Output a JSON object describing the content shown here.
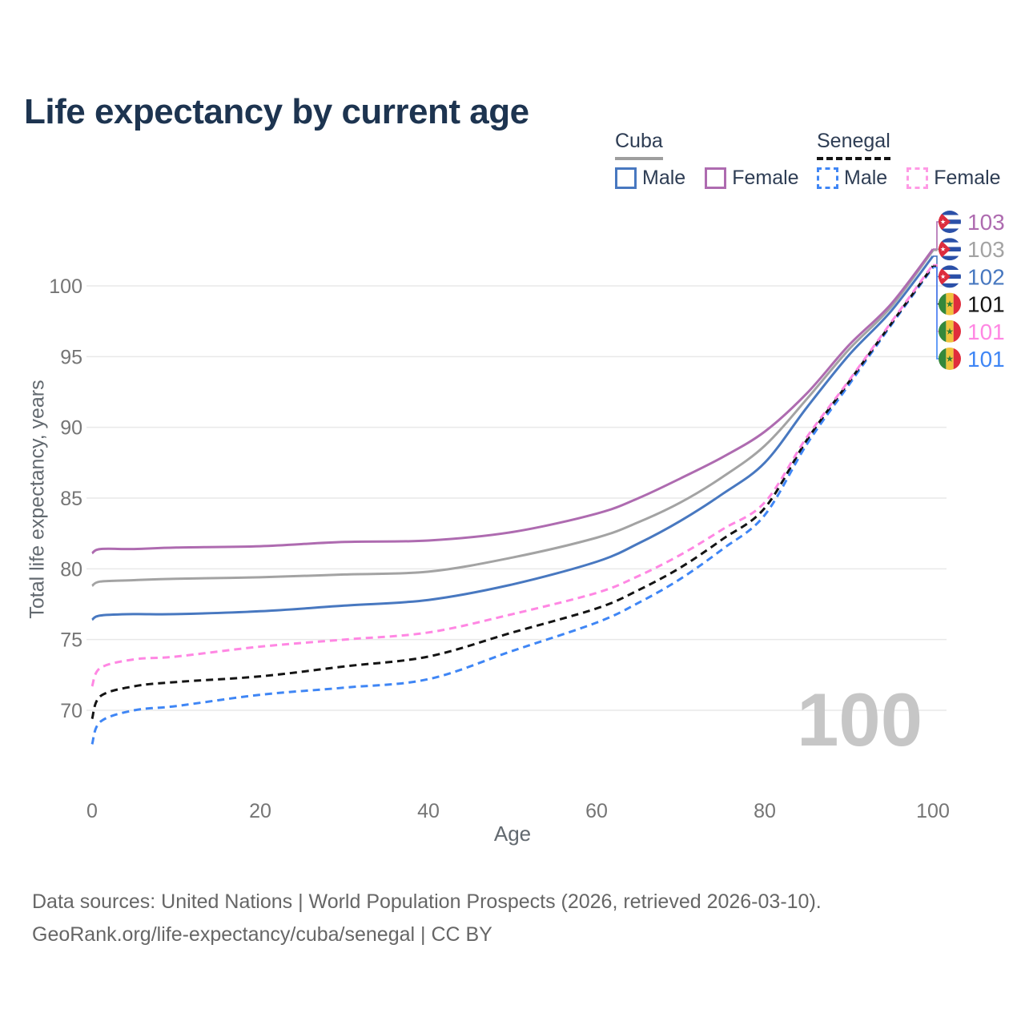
{
  "title": "Life expectancy by current age",
  "legend": {
    "groups": [
      {
        "country": "Cuba",
        "line_style": "solid",
        "line_color": "#9e9e9e",
        "items": [
          {
            "label": "Male",
            "color": "#4878c0",
            "dashed": false
          },
          {
            "label": "Female",
            "color": "#ae6bb0",
            "dashed": false
          }
        ]
      },
      {
        "country": "Senegal",
        "line_style": "dashed",
        "line_color": "#141414",
        "items": [
          {
            "label": "Male",
            "color": "#3f86f5",
            "dashed": true
          },
          {
            "label": "Female",
            "color": "#ff9ae5",
            "dashed": true
          }
        ]
      }
    ]
  },
  "chart_data": {
    "type": "line",
    "title": "Life expectancy by current age",
    "xlabel": "Age",
    "ylabel": "Total life expectancy, years",
    "x_ticks": [
      0,
      20,
      40,
      60,
      80,
      100
    ],
    "y_ticks": [
      70,
      75,
      80,
      85,
      90,
      95,
      100
    ],
    "xlim": [
      0,
      100
    ],
    "ylim": [
      66,
      104
    ],
    "grid": "horizontal-only",
    "age_frame": "100",
    "x": [
      0,
      1,
      5,
      10,
      20,
      30,
      40,
      50,
      60,
      65,
      70,
      75,
      80,
      85,
      90,
      95,
      100
    ],
    "series": [
      {
        "name": "Cuba Male",
        "country": "Cuba",
        "sex": "Male",
        "style": "solid",
        "color": "#4878c0",
        "end_label": "102",
        "values": [
          76.4,
          76.7,
          76.8,
          76.8,
          77.0,
          77.4,
          77.8,
          78.9,
          80.5,
          81.8,
          83.4,
          85.3,
          87.5,
          91.4,
          95.1,
          98.2,
          102.1
        ]
      },
      {
        "name": "Cuba Both sexes",
        "country": "Cuba",
        "sex": "Both sexes",
        "style": "solid",
        "color": "#a3a3a3",
        "end_label": "103",
        "values": [
          78.8,
          79.1,
          79.2,
          79.3,
          79.4,
          79.6,
          79.8,
          80.8,
          82.2,
          83.3,
          84.7,
          86.5,
          88.7,
          92.0,
          95.5,
          98.5,
          102.5
        ]
      },
      {
        "name": "Cuba Female",
        "country": "Cuba",
        "sex": "Female",
        "style": "solid",
        "color": "#ae6bb0",
        "end_label": "103",
        "values": [
          81.1,
          81.4,
          81.4,
          81.5,
          81.6,
          81.9,
          82.0,
          82.6,
          83.9,
          85.0,
          86.4,
          87.9,
          89.7,
          92.4,
          95.8,
          98.7,
          102.6
        ]
      },
      {
        "name": "Senegal Male",
        "country": "Senegal",
        "sex": "Male",
        "style": "dashed",
        "color": "#3f86f5",
        "end_label": "101",
        "values": [
          67.6,
          69.2,
          70.0,
          70.3,
          71.1,
          71.6,
          72.2,
          74.2,
          76.2,
          77.6,
          79.3,
          81.4,
          83.8,
          88.8,
          93.0,
          97.2,
          101.3
        ]
      },
      {
        "name": "Senegal Both sexes",
        "country": "Senegal",
        "sex": "Both sexes",
        "style": "dashed",
        "color": "#141414",
        "end_label": "101",
        "values": [
          69.4,
          71.0,
          71.7,
          72.0,
          72.4,
          73.1,
          73.8,
          75.5,
          77.2,
          78.5,
          80.1,
          82.1,
          84.3,
          89.1,
          93.2,
          97.3,
          101.4
        ]
      },
      {
        "name": "Senegal Female",
        "country": "Senegal",
        "sex": "Female",
        "style": "dashed",
        "color": "#ff87e3",
        "end_label": "101",
        "values": [
          71.7,
          73.0,
          73.6,
          73.8,
          74.5,
          75.0,
          75.5,
          76.8,
          78.3,
          79.5,
          81.0,
          82.8,
          84.7,
          89.3,
          93.3,
          97.4,
          101.5
        ]
      }
    ],
    "end_labels": [
      {
        "series": "Cuba Female",
        "value": "103",
        "flag": "cuba",
        "color": "#ae6bb0"
      },
      {
        "series": "Cuba Both sexes",
        "value": "103",
        "flag": "cuba",
        "color": "#a3a3a3"
      },
      {
        "series": "Cuba Male",
        "value": "102",
        "flag": "cuba",
        "color": "#4878c0"
      },
      {
        "series": "Senegal Both sexes",
        "value": "101",
        "flag": "senegal",
        "color": "#141414"
      },
      {
        "series": "Senegal Female",
        "value": "101",
        "flag": "senegal",
        "color": "#ff87e3"
      },
      {
        "series": "Senegal Male",
        "value": "101",
        "flag": "senegal",
        "color": "#3f86f5"
      }
    ]
  },
  "footer": {
    "line1": "Data sources: United Nations | World Population Prospects (2026, retrieved 2026-03-10).",
    "line2": "GeoRank.org/life-expectancy/cuba/senegal | CC BY"
  }
}
